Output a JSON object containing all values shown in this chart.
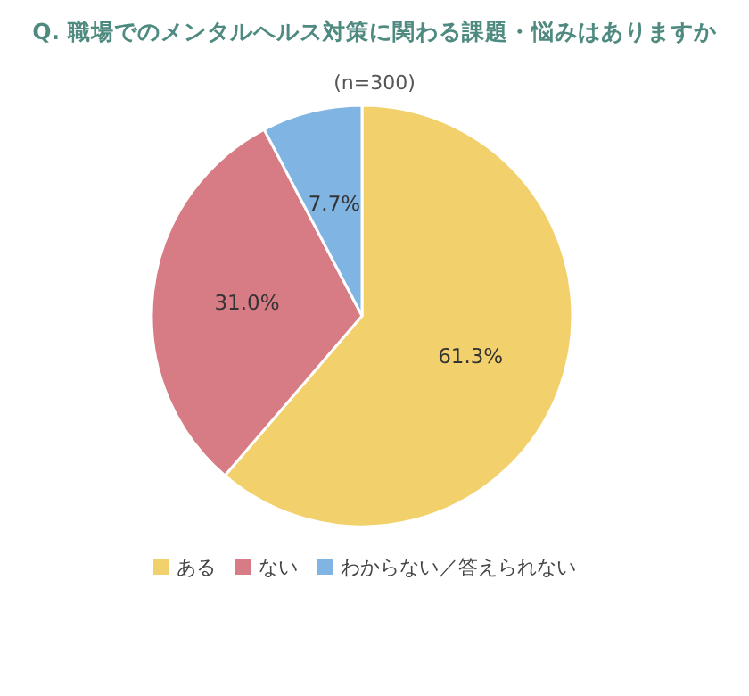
{
  "chart_data": {
    "type": "pie",
    "title": "Q. 職場でのメンタルヘルス対策に関わる課題・悩みはありますか",
    "subtitle": "(n=300)",
    "categories": [
      "ある",
      "ない",
      "わからない／答えられない"
    ],
    "values": [
      61.3,
      31.0,
      7.7
    ],
    "colors": [
      "#f2d06b",
      "#d77b84",
      "#80b4e2"
    ],
    "value_labels": [
      "61.3%",
      "31.0%",
      "7.7%"
    ],
    "legend": "bottom"
  }
}
